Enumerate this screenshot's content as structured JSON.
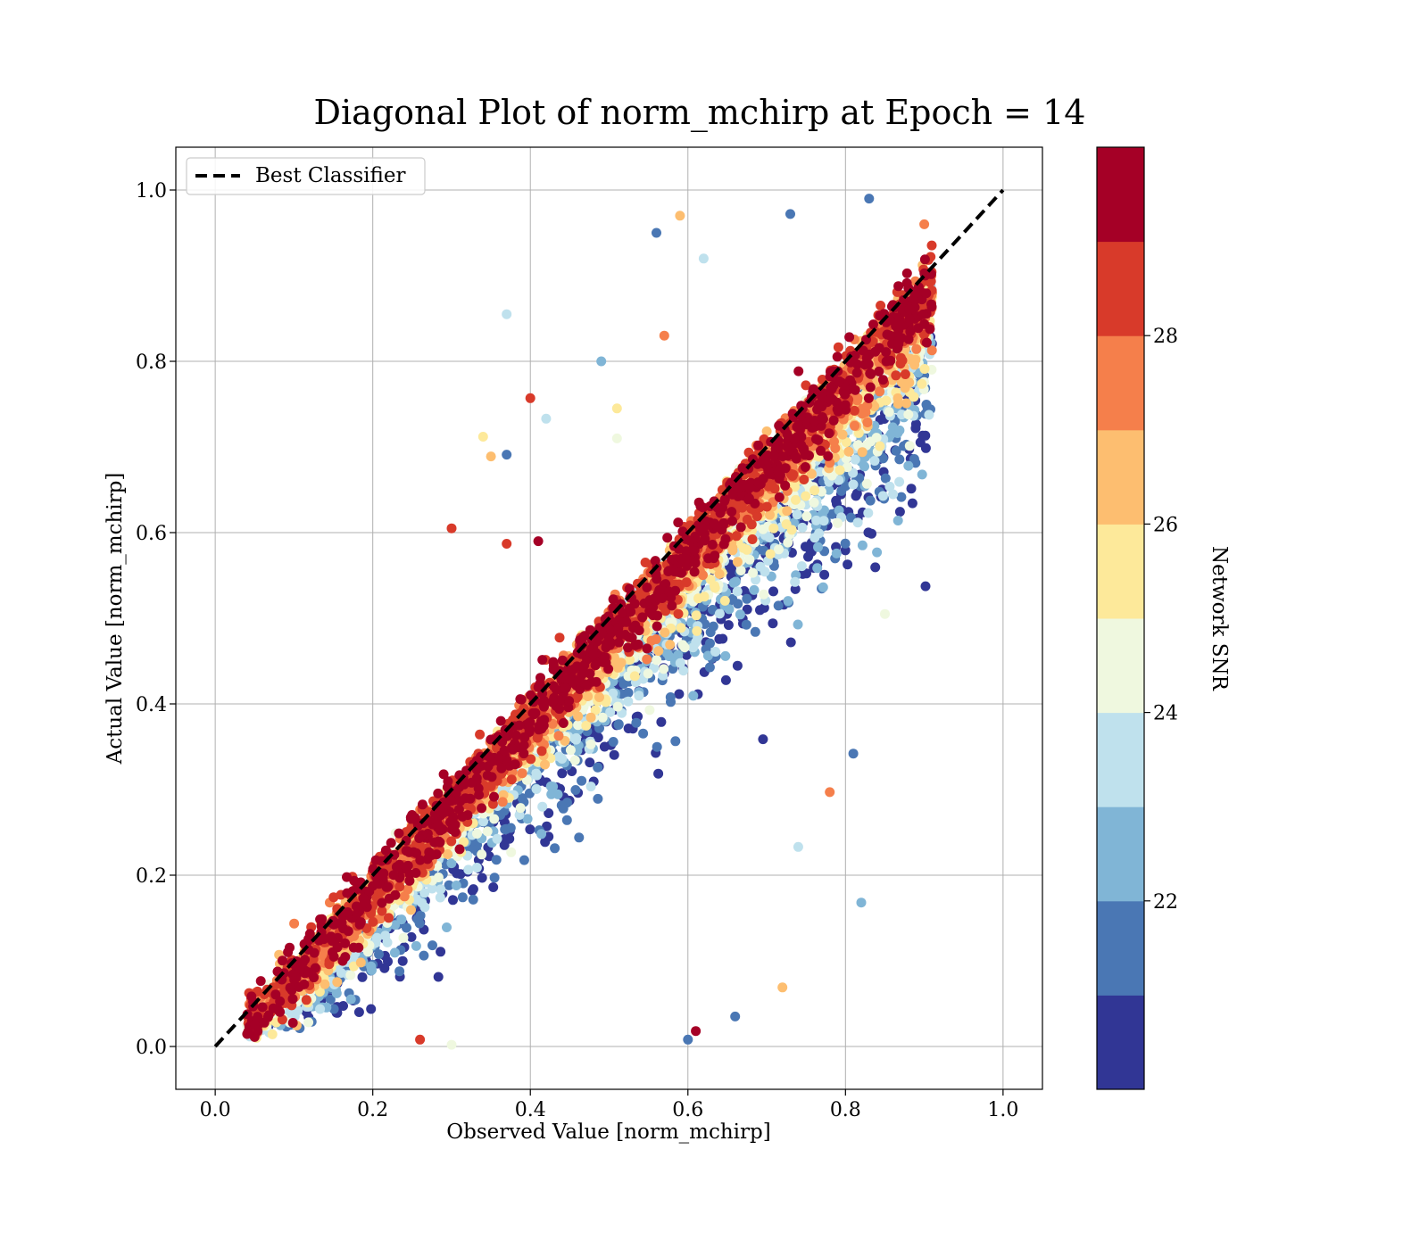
{
  "chart_data": {
    "type": "scatter",
    "title": "Diagonal Plot of norm_mchirp at Epoch = 14",
    "xlabel": "Observed Value [norm_mchirp]",
    "ylabel": "Actual Value [norm_mchirp]",
    "xlim": [
      -0.05,
      1.05
    ],
    "ylim": [
      -0.05,
      1.05
    ],
    "xticks": [
      "0.0",
      "0.2",
      "0.4",
      "0.6",
      "0.8",
      "1.0"
    ],
    "yticks": [
      "0.0",
      "0.2",
      "0.4",
      "0.6",
      "0.8",
      "1.0"
    ],
    "grid": true,
    "legend": {
      "position": "upper-left",
      "entries": [
        "Best Classifier"
      ]
    },
    "reference_line": {
      "label": "Best Classifier",
      "x": [
        0.0,
        1.0
      ],
      "y": [
        0.0,
        1.0
      ],
      "style": "dashed",
      "color": "#000000"
    },
    "colorbar": {
      "label": "Network SNR",
      "range": [
        20.0,
        30.0
      ],
      "ticks": [
        "22",
        "24",
        "26",
        "28"
      ],
      "tick_values": [
        22,
        24,
        26,
        28
      ],
      "colormap": "RdYlBu_r",
      "colors": [
        "#313695",
        "#4a77b4",
        "#80b5d6",
        "#bfe1ed",
        "#eff8df",
        "#fde99a",
        "#fdbe70",
        "#f57f4b",
        "#d83a2a",
        "#a50026"
      ]
    },
    "series": [
      {
        "color_by": "Network SNR",
        "points": [
          {
            "x": 0.56,
            "y": 0.95,
            "c": 21.5
          },
          {
            "x": 0.59,
            "y": 0.97,
            "c": 26.5
          },
          {
            "x": 0.62,
            "y": 0.92,
            "c": 23.5
          },
          {
            "x": 0.37,
            "y": 0.855,
            "c": 23.5
          },
          {
            "x": 0.49,
            "y": 0.8,
            "c": 22.5
          },
          {
            "x": 0.57,
            "y": 0.83,
            "c": 27.5
          },
          {
            "x": 0.4,
            "y": 0.757,
            "c": 28.5
          },
          {
            "x": 0.42,
            "y": 0.733,
            "c": 23.5
          },
          {
            "x": 0.51,
            "y": 0.745,
            "c": 25.0
          },
          {
            "x": 0.51,
            "y": 0.71,
            "c": 24.5
          },
          {
            "x": 0.34,
            "y": 0.712,
            "c": 25.0
          },
          {
            "x": 0.35,
            "y": 0.689,
            "c": 26.0
          },
          {
            "x": 0.37,
            "y": 0.691,
            "c": 21.5
          },
          {
            "x": 0.3,
            "y": 0.605,
            "c": 28.5
          },
          {
            "x": 0.37,
            "y": 0.587,
            "c": 28.5
          },
          {
            "x": 0.41,
            "y": 0.59,
            "c": 29.5
          },
          {
            "x": 0.82,
            "y": 0.168,
            "c": 22.5
          },
          {
            "x": 0.72,
            "y": 0.069,
            "c": 26.0
          },
          {
            "x": 0.66,
            "y": 0.035,
            "c": 21.0
          },
          {
            "x": 0.61,
            "y": 0.018,
            "c": 29.0
          },
          {
            "x": 0.6,
            "y": 0.008,
            "c": 21.5
          },
          {
            "x": 0.74,
            "y": 0.233,
            "c": 23.0
          },
          {
            "x": 0.78,
            "y": 0.297,
            "c": 27.5
          },
          {
            "x": 0.81,
            "y": 0.342,
            "c": 21.0
          },
          {
            "x": 0.85,
            "y": 0.505,
            "c": 24.5
          },
          {
            "x": 0.84,
            "y": 0.577,
            "c": 22.5
          },
          {
            "x": 0.86,
            "y": 0.723,
            "c": 22.5
          },
          {
            "x": 0.73,
            "y": 0.972,
            "c": 21.5
          },
          {
            "x": 0.83,
            "y": 0.99,
            "c": 21.0
          },
          {
            "x": 0.9,
            "y": 0.96,
            "c": 27.5
          },
          {
            "x": 0.05,
            "y": 0.011,
            "c": 29.5
          },
          {
            "x": 0.26,
            "y": 0.008,
            "c": 28.5
          },
          {
            "x": 0.3,
            "y": 0.002,
            "c": 24.5
          }
        ]
      }
    ]
  }
}
